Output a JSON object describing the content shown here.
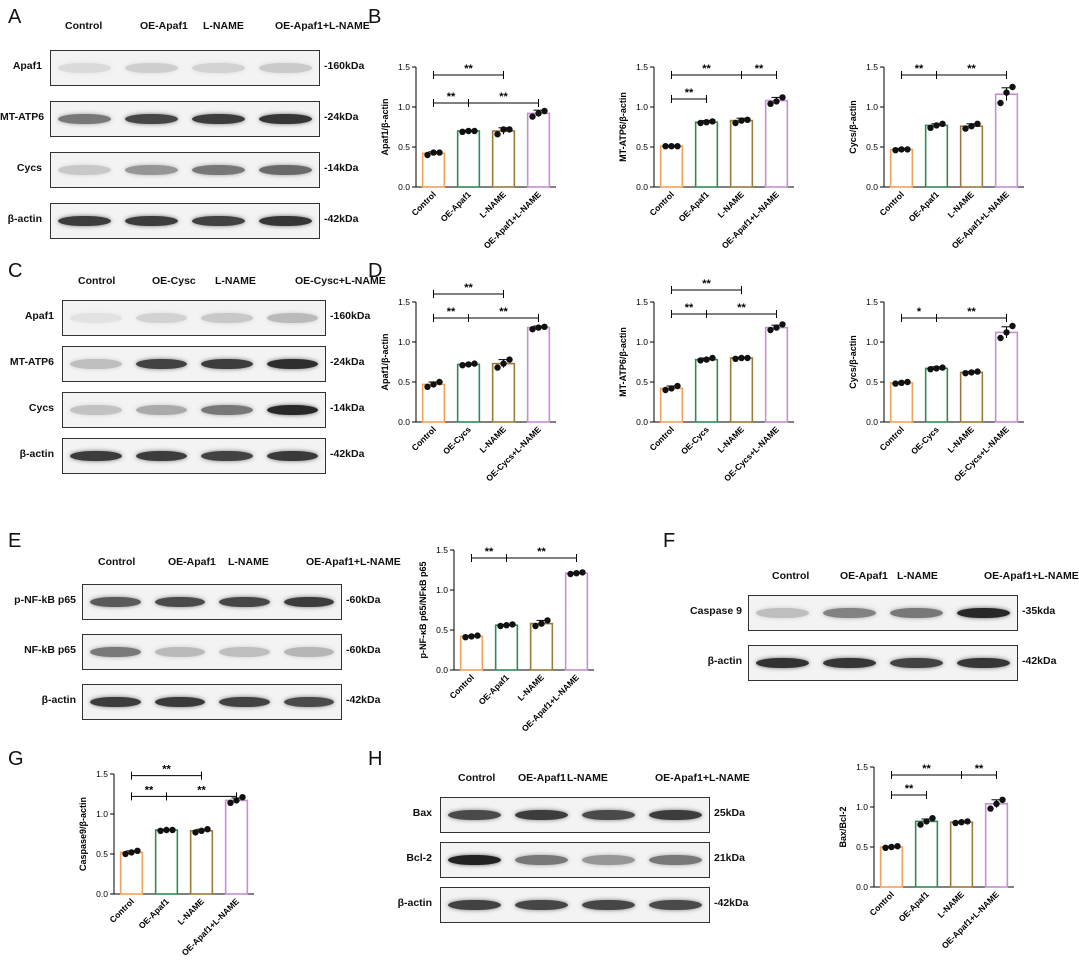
{
  "panels": {
    "A": {
      "letter": "A",
      "lanes": [
        "Control",
        "OE-Apaf1",
        "L-NAME",
        "OE-Apaf1+L-NAME"
      ],
      "rows": [
        {
          "name": "Apaf1",
          "size": "-160kDa",
          "intensity": [
            0.06,
            0.12,
            0.1,
            0.14
          ]
        },
        {
          "name": "MT-ATP6",
          "size": "-24kDa",
          "intensity": [
            0.55,
            0.8,
            0.85,
            0.88
          ]
        },
        {
          "name": "Cycs",
          "size": "-14kDa",
          "intensity": [
            0.15,
            0.4,
            0.55,
            0.62
          ]
        },
        {
          "name": "β-actin",
          "size": "-42kDa",
          "intensity": [
            0.85,
            0.85,
            0.82,
            0.88
          ]
        }
      ]
    },
    "B": {
      "letter": "B"
    },
    "C": {
      "letter": "C",
      "lanes": [
        "Control",
        "OE-Cysc",
        "L-NAME",
        "OE-Cysc+L-NAME"
      ],
      "rows": [
        {
          "name": "Apaf1",
          "size": "-160kDa",
          "intensity": [
            0.02,
            0.1,
            0.15,
            0.22
          ]
        },
        {
          "name": "MT-ATP6",
          "size": "-24kDa",
          "intensity": [
            0.2,
            0.82,
            0.85,
            0.92
          ]
        },
        {
          "name": "Cycs",
          "size": "-14kDa",
          "intensity": [
            0.18,
            0.3,
            0.55,
            0.95
          ]
        },
        {
          "name": "β-actin",
          "size": "-42kDa",
          "intensity": [
            0.85,
            0.85,
            0.82,
            0.86
          ]
        }
      ]
    },
    "D": {
      "letter": "D"
    },
    "E": {
      "letter": "E",
      "lanes": [
        "Control",
        "OE-Apaf1",
        "L-NAME",
        "OE-Apaf1+L-NAME"
      ],
      "rows": [
        {
          "name": "p-NF-kB p65",
          "size": "-60kDa",
          "intensity": [
            0.7,
            0.78,
            0.8,
            0.85
          ]
        },
        {
          "name": "NF-kB p65",
          "size": "-60kDa",
          "intensity": [
            0.55,
            0.22,
            0.2,
            0.24
          ]
        },
        {
          "name": "β-actin",
          "size": "-42kDa",
          "intensity": [
            0.85,
            0.86,
            0.82,
            0.78
          ]
        }
      ]
    },
    "F": {
      "letter": "F",
      "lanes": [
        "Control",
        "OE-Apaf1",
        "L-NAME",
        "OE-Apaf1+L-NAME"
      ],
      "rows": [
        {
          "name": "Caspase 9",
          "size": "-35kda",
          "intensity": [
            0.2,
            0.5,
            0.55,
            0.95
          ]
        },
        {
          "name": "β-actin",
          "size": "-42kDa",
          "intensity": [
            0.9,
            0.88,
            0.82,
            0.88
          ]
        }
      ]
    },
    "G": {
      "letter": "G"
    },
    "H": {
      "letter": "H",
      "lanes": [
        "Control",
        "OE-Apaf1",
        "L-NAME",
        "OE-Apaf1+L-NAME"
      ],
      "rows": [
        {
          "name": "Bax",
          "size": "25kDa",
          "intensity": [
            0.78,
            0.85,
            0.78,
            0.85
          ]
        },
        {
          "name": "Bcl-2",
          "size": "21kDa",
          "intensity": [
            0.98,
            0.55,
            0.4,
            0.55
          ]
        },
        {
          "name": "β-actin",
          "size": "-42kDa",
          "intensity": [
            0.82,
            0.8,
            0.8,
            0.78
          ]
        }
      ]
    }
  },
  "colors": {
    "Control": "#f2a25c",
    "OE": "#2e8b57",
    "L-NAME": "#9b7a3a",
    "Combo": "#c58fd0"
  },
  "chart_data": [
    {
      "id": "B1",
      "type": "bar",
      "categories": [
        "Control",
        "OE-Apaf1",
        "L-NAME",
        "OE-Apaf1+L-NAME"
      ],
      "values": [
        0.42,
        0.7,
        0.7,
        0.92
      ],
      "errors": [
        0.02,
        0.01,
        0.04,
        0.04
      ],
      "points": [
        [
          0.4,
          0.43,
          0.43
        ],
        [
          0.69,
          0.7,
          0.7
        ],
        [
          0.66,
          0.72,
          0.72
        ],
        [
          0.88,
          0.92,
          0.95
        ]
      ],
      "ylabel": "Apaf1/β-actin",
      "ylim": [
        0,
        1.5
      ],
      "yticks": [
        "0.0",
        "0.5",
        "1.0",
        "1.5"
      ],
      "tickvals": [
        0,
        0.5,
        1.0,
        1.5
      ],
      "sig": [
        {
          "from": 0,
          "to": 1,
          "label": "**",
          "level": 1.05
        },
        {
          "from": 1,
          "to": 3,
          "label": "**",
          "level": 1.05
        },
        {
          "from": 0,
          "to": 2,
          "label": "**",
          "level": 1.4
        }
      ]
    },
    {
      "id": "B2",
      "type": "bar",
      "categories": [
        "Control",
        "OE-Apaf1",
        "L-NAME",
        "OE-Apaf1+L-NAME"
      ],
      "values": [
        0.51,
        0.81,
        0.83,
        1.08
      ],
      "errors": [
        0.01,
        0.02,
        0.03,
        0.04
      ],
      "points": [
        [
          0.51,
          0.51,
          0.51
        ],
        [
          0.8,
          0.81,
          0.82
        ],
        [
          0.8,
          0.83,
          0.84
        ],
        [
          1.04,
          1.07,
          1.12
        ]
      ],
      "ylabel": "MT-ATP6/β-actin",
      "ylim": [
        0,
        1.5
      ],
      "yticks": [
        "0.0",
        "0.5",
        "1.0",
        "1.5"
      ],
      "tickvals": [
        0,
        0.5,
        1.0,
        1.5
      ],
      "sig": [
        {
          "from": 0,
          "to": 1,
          "label": "**",
          "level": 1.1
        },
        {
          "from": 0,
          "to": 2,
          "label": "**",
          "level": 1.4
        },
        {
          "from": 2,
          "to": 3,
          "label": "**",
          "level": 1.4
        }
      ]
    },
    {
      "id": "B3",
      "type": "bar",
      "categories": [
        "Control",
        "OE-Apaf1",
        "L-NAME",
        "OE-Apaf1+L-NAME"
      ],
      "values": [
        0.47,
        0.77,
        0.76,
        1.16
      ],
      "errors": [
        0.01,
        0.02,
        0.03,
        0.08
      ],
      "points": [
        [
          0.46,
          0.47,
          0.47
        ],
        [
          0.74,
          0.77,
          0.79
        ],
        [
          0.73,
          0.76,
          0.79
        ],
        [
          1.05,
          1.18,
          1.25
        ]
      ],
      "ylabel": "Cycs/β-actin",
      "ylim": [
        0,
        1.5
      ],
      "yticks": [
        "0.0",
        "0.5",
        "1.0",
        "1.5"
      ],
      "tickvals": [
        0,
        0.5,
        1.0,
        1.5
      ],
      "sig": [
        {
          "from": 0,
          "to": 1,
          "label": "**",
          "level": 1.4
        },
        {
          "from": 1,
          "to": 3,
          "label": "**",
          "level": 1.4
        }
      ]
    },
    {
      "id": "D1",
      "type": "bar",
      "categories": [
        "Control",
        "OE-Cycs",
        "L-NAME",
        "OE-Cycs+L-NAME"
      ],
      "values": [
        0.47,
        0.72,
        0.73,
        1.18
      ],
      "errors": [
        0.03,
        0.01,
        0.05,
        0.02
      ],
      "points": [
        [
          0.44,
          0.47,
          0.5
        ],
        [
          0.71,
          0.72,
          0.73
        ],
        [
          0.68,
          0.73,
          0.78
        ],
        [
          1.16,
          1.18,
          1.19
        ]
      ],
      "ylabel": "Apaf1/β-actin",
      "ylim": [
        0,
        1.5
      ],
      "yticks": [
        "0.0",
        "0.5",
        "1.0",
        "1.5"
      ],
      "tickvals": [
        0,
        0.5,
        1.0,
        1.5
      ],
      "sig": [
        {
          "from": 0,
          "to": 1,
          "label": "**",
          "level": 1.3
        },
        {
          "from": 1,
          "to": 3,
          "label": "**",
          "level": 1.3
        },
        {
          "from": 0,
          "to": 2,
          "label": "**",
          "level": 1.6
        }
      ]
    },
    {
      "id": "D2",
      "type": "bar",
      "categories": [
        "Control",
        "OE-Cycs",
        "L-NAME",
        "OE-Cycs+L-NAME"
      ],
      "values": [
        0.42,
        0.78,
        0.8,
        1.18
      ],
      "errors": [
        0.03,
        0.02,
        0.01,
        0.03
      ],
      "points": [
        [
          0.4,
          0.42,
          0.45
        ],
        [
          0.77,
          0.78,
          0.8
        ],
        [
          0.79,
          0.8,
          0.8
        ],
        [
          1.15,
          1.18,
          1.22
        ]
      ],
      "ylabel": "MT-ATP6/β-actin",
      "ylim": [
        0,
        1.5
      ],
      "yticks": [
        "0.0",
        "0.5",
        "1.0",
        "1.5"
      ],
      "tickvals": [
        0,
        0.5,
        1.0,
        1.5
      ],
      "sig": [
        {
          "from": 0,
          "to": 1,
          "label": "**",
          "level": 1.35
        },
        {
          "from": 1,
          "to": 3,
          "label": "**",
          "level": 1.35
        },
        {
          "from": 0,
          "to": 2,
          "label": "**",
          "level": 1.65
        }
      ]
    },
    {
      "id": "D3",
      "type": "bar",
      "categories": [
        "Control",
        "OE-Cycs",
        "L-NAME",
        "OE-Cycs+L-NAME"
      ],
      "values": [
        0.49,
        0.67,
        0.62,
        1.12
      ],
      "errors": [
        0.01,
        0.02,
        0.01,
        0.07
      ],
      "points": [
        [
          0.48,
          0.49,
          0.5
        ],
        [
          0.66,
          0.67,
          0.68
        ],
        [
          0.61,
          0.62,
          0.63
        ],
        [
          1.05,
          1.12,
          1.2
        ]
      ],
      "ylabel": "Cycs/β-actin",
      "ylim": [
        0,
        1.5
      ],
      "yticks": [
        "0.0",
        "0.5",
        "1.0",
        "1.5"
      ],
      "tickvals": [
        0,
        0.5,
        1.0,
        1.5
      ],
      "sig": [
        {
          "from": 0,
          "to": 1,
          "label": "*",
          "level": 1.3
        },
        {
          "from": 1,
          "to": 3,
          "label": "**",
          "level": 1.3
        }
      ]
    },
    {
      "id": "E1",
      "type": "bar",
      "categories": [
        "Control",
        "OE-Apaf1",
        "L-NAME",
        "OE-Apaf1+L-NAME"
      ],
      "values": [
        0.42,
        0.56,
        0.58,
        1.21
      ],
      "errors": [
        0.01,
        0.01,
        0.04,
        0.01
      ],
      "points": [
        [
          0.41,
          0.42,
          0.43
        ],
        [
          0.55,
          0.56,
          0.57
        ],
        [
          0.55,
          0.58,
          0.62
        ],
        [
          1.2,
          1.21,
          1.22
        ]
      ],
      "ylabel": "p-NF-κB p65/NFκB p65",
      "ylim": [
        0,
        1.5
      ],
      "yticks": [
        "0.0",
        "0.5",
        "1.0",
        "1.5"
      ],
      "tickvals": [
        0,
        0.5,
        1.0,
        1.5
      ],
      "sig": [
        {
          "from": 0,
          "to": 1,
          "label": "**",
          "level": 1.4
        },
        {
          "from": 1,
          "to": 3,
          "label": "**",
          "level": 1.4
        }
      ]
    },
    {
      "id": "G1",
      "type": "bar",
      "categories": [
        "Control",
        "OE-Apaf1",
        "L-NAME",
        "OE-Apaf1+L-NAME"
      ],
      "values": [
        0.52,
        0.8,
        0.79,
        1.17
      ],
      "errors": [
        0.02,
        0.01,
        0.02,
        0.03
      ],
      "points": [
        [
          0.5,
          0.52,
          0.54
        ],
        [
          0.79,
          0.8,
          0.8
        ],
        [
          0.77,
          0.79,
          0.81
        ],
        [
          1.14,
          1.17,
          1.21
        ]
      ],
      "ylabel": "Caspase9/β-actin",
      "ylim": [
        0,
        1.5
      ],
      "yticks": [
        "0.0",
        "0.5",
        "1.0",
        "1.5"
      ],
      "tickvals": [
        0,
        0.5,
        1.0,
        1.5
      ],
      "sig": [
        {
          "from": 0,
          "to": 1,
          "label": "**",
          "level": 1.22
        },
        {
          "from": 1,
          "to": 3,
          "label": "**",
          "level": 1.22
        },
        {
          "from": 0,
          "to": 2,
          "label": "**",
          "level": 1.48
        }
      ]
    },
    {
      "id": "H1",
      "type": "bar",
      "categories": [
        "Control",
        "OE-Apaf1",
        "L-NAME",
        "OE-Apaf1+L-NAME"
      ],
      "values": [
        0.5,
        0.82,
        0.81,
        1.04
      ],
      "errors": [
        0.01,
        0.03,
        0.01,
        0.05
      ],
      "points": [
        [
          0.49,
          0.5,
          0.51
        ],
        [
          0.78,
          0.82,
          0.86
        ],
        [
          0.8,
          0.81,
          0.82
        ],
        [
          0.98,
          1.04,
          1.09
        ]
      ],
      "ylabel": "Bax/Bcl-2",
      "ylim": [
        0,
        1.5
      ],
      "yticks": [
        "0.0",
        "0.5",
        "1.0",
        "1.5"
      ],
      "tickvals": [
        0,
        0.5,
        1.0,
        1.5
      ],
      "sig": [
        {
          "from": 0,
          "to": 1,
          "label": "**",
          "level": 1.15
        },
        {
          "from": 0,
          "to": 2,
          "label": "**",
          "level": 1.4
        },
        {
          "from": 2,
          "to": 3,
          "label": "**",
          "level": 1.4
        }
      ]
    }
  ]
}
